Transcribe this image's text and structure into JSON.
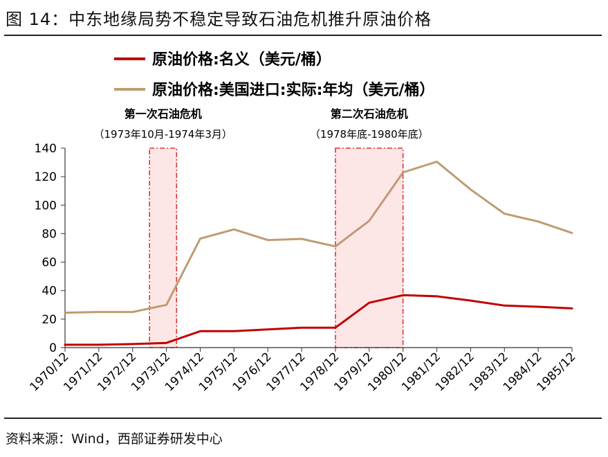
{
  "figure_title": "图 14：中东地缘局势不稳定导致石油危机推升原油价格",
  "source_note": "资料来源：Wind，西部证券研发中心",
  "chart_data": {
    "type": "line",
    "categories": [
      "1970/12",
      "1971/12",
      "1972/12",
      "1973/12",
      "1974/12",
      "1975/12",
      "1976/12",
      "1977/12",
      "1978/12",
      "1979/12",
      "1980/12",
      "1981/12",
      "1982/12",
      "1983/12",
      "1984/12",
      "1985/12"
    ],
    "series": [
      {
        "name": "原油价格:名义（美元/桶）",
        "color": "#c00000",
        "values": [
          2.0,
          2.0,
          2.5,
          3.3,
          11.5,
          11.5,
          12.8,
          14.0,
          14.0,
          31.5,
          36.8,
          36.0,
          33.0,
          29.5,
          28.7,
          27.5
        ]
      },
      {
        "name": "原油价格:美国进口:实际:年均（美元/桶）",
        "color": "#bf9b72",
        "values": [
          24.5,
          25.0,
          25.0,
          30.0,
          76.5,
          83.0,
          75.5,
          76.3,
          71.0,
          89.0,
          123.0,
          130.5,
          111.0,
          94.0,
          88.5,
          80.5
        ]
      }
    ],
    "ylim": [
      0,
      140
    ],
    "yticks": [
      0,
      20,
      40,
      60,
      80,
      100,
      120,
      140
    ],
    "legend_position": "top",
    "grid": false,
    "annotations": [
      {
        "title": "第一次石油危机",
        "subtitle": "（1973年10月-1974年3月）",
        "from": 2.5,
        "to": 3.3
      },
      {
        "title": "第二次石油危机",
        "subtitle": "（1978年底-1980年底）",
        "from": 8.0,
        "to": 10.0
      }
    ],
    "shade_color": "#fde6e6",
    "shade_border_color": "#e03030"
  }
}
